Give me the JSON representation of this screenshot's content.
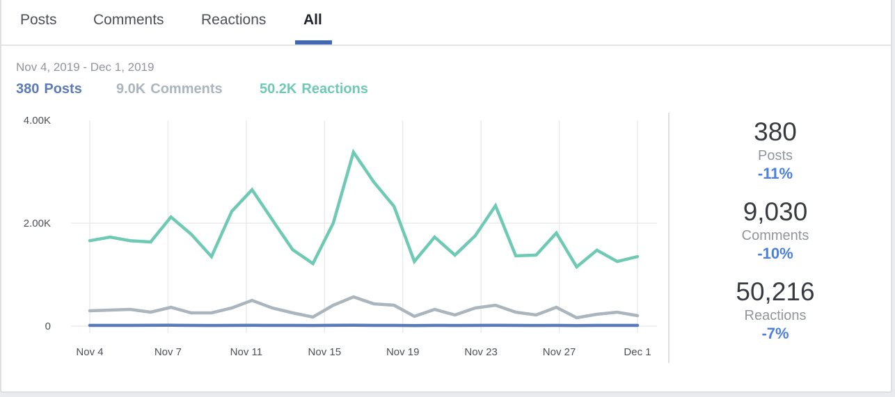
{
  "tabs": [
    {
      "label": "Posts",
      "active": false
    },
    {
      "label": "Comments",
      "active": false
    },
    {
      "label": "Reactions",
      "active": false
    },
    {
      "label": "All",
      "active": true
    }
  ],
  "date_range": "Nov 4, 2019 - Dec 1, 2019",
  "legend": [
    {
      "value": "380",
      "label": "Posts",
      "color": "#5b7bb7"
    },
    {
      "value": "9.0K",
      "label": "Comments",
      "color": "#aab5bd"
    },
    {
      "value": "50.2K",
      "label": "Reactions",
      "color": "#6fcab5"
    }
  ],
  "stats": [
    {
      "value": "380",
      "label": "Posts",
      "change": "-11%"
    },
    {
      "value": "9,030",
      "label": "Comments",
      "change": "-10%"
    },
    {
      "value": "50,216",
      "label": "Reactions",
      "change": "-7%"
    }
  ],
  "chart_data": {
    "type": "line",
    "title": "",
    "xlabel": "",
    "ylabel": "",
    "ylim": [
      0,
      4000
    ],
    "y_ticks": [
      {
        "value": 0,
        "label": "0"
      },
      {
        "value": 2000,
        "label": "2.00K"
      },
      {
        "value": 4000,
        "label": "4.00K"
      }
    ],
    "x_tick_labels": [
      "Nov 4",
      "Nov 7",
      "Nov 11",
      "Nov 15",
      "Nov 19",
      "Nov 23",
      "Nov 27",
      "Dec 1"
    ],
    "x": [
      "Nov 4",
      "Nov 5",
      "Nov 6",
      "Nov 7",
      "Nov 8",
      "Nov 9",
      "Nov 10",
      "Nov 11",
      "Nov 12",
      "Nov 13",
      "Nov 14",
      "Nov 15",
      "Nov 16",
      "Nov 17",
      "Nov 18",
      "Nov 19",
      "Nov 20",
      "Nov 21",
      "Nov 22",
      "Nov 23",
      "Nov 24",
      "Nov 25",
      "Nov 26",
      "Nov 27",
      "Nov 28",
      "Nov 29",
      "Nov 30",
      "Dec 1"
    ],
    "grid": true,
    "legend_position": "top-left",
    "series": [
      {
        "name": "Reactions",
        "color": "#6fcab5",
        "values": [
          1660,
          1730,
          1660,
          1635,
          2120,
          1785,
          1350,
          2230,
          2650,
          2065,
          1485,
          1215,
          2000,
          3380,
          2800,
          2325,
          1255,
          1730,
          1380,
          1755,
          2340,
          1365,
          1380,
          1810,
          1150,
          1475,
          1255,
          1350
        ]
      },
      {
        "name": "Comments",
        "color": "#aab5bd",
        "values": [
          297,
          311,
          324,
          270,
          365,
          257,
          257,
          351,
          500,
          351,
          257,
          176,
          405,
          568,
          432,
          405,
          189,
          324,
          216,
          351,
          405,
          270,
          216,
          365,
          162,
          230,
          270,
          203
        ]
      },
      {
        "name": "Posts",
        "color": "#5b7bb7",
        "values": [
          13,
          14,
          13,
          15,
          16,
          13,
          12,
          14,
          15,
          14,
          13,
          12,
          15,
          16,
          14,
          13,
          11,
          13,
          12,
          14,
          15,
          13,
          12,
          14,
          11,
          13,
          14,
          13
        ]
      }
    ]
  }
}
